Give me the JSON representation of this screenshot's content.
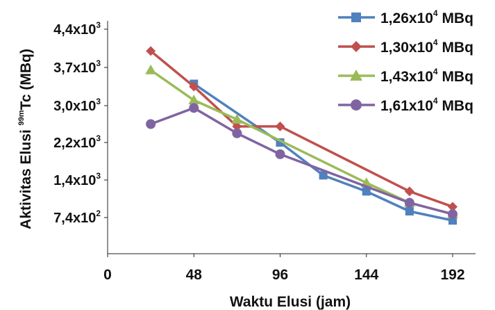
{
  "chart_data": {
    "type": "line",
    "xlabel": "Waktu Elusi (jam)",
    "ylabel": {
      "before": "Aktivitas Elusi ",
      "sup": "99m",
      "after": "Tc (MBq)"
    },
    "x_ticks": [
      "0",
      "48",
      "96",
      "144",
      "192"
    ],
    "x_tick_values": [
      0,
      48,
      96,
      144,
      192
    ],
    "xlim": [
      0,
      192
    ],
    "y_ticks": [
      {
        "value": 740,
        "base": "7,4x10",
        "exp": "2"
      },
      {
        "value": 1400,
        "base": "1,4x10",
        "exp": "3"
      },
      {
        "value": 2200,
        "base": "2,2x10",
        "exp": "3"
      },
      {
        "value": 3000,
        "base": "3,0x10",
        "exp": "3"
      },
      {
        "value": 3700,
        "base": "3,7x10",
        "exp": "3"
      },
      {
        "value": 4400,
        "base": "4,4x10",
        "exp": "3"
      }
    ],
    "y_axis_bottom_value": 0,
    "grid": false,
    "legend_position": "top-right",
    "series": [
      {
        "name": {
          "base": "1,26x10",
          "exp": "4",
          "unit": " MBq"
        },
        "color": "#4f81bd",
        "marker": "square",
        "x": [
          48,
          96,
          120,
          144,
          168,
          192
        ],
        "y": [
          3400,
          2200,
          1500,
          1200,
          850,
          680
        ]
      },
      {
        "name": {
          "base": "1,30x10",
          "exp": "4",
          "unit": " MBq"
        },
        "color": "#c0504d",
        "marker": "diamond",
        "x": [
          24,
          48,
          72,
          96,
          168,
          192
        ],
        "y": [
          4000,
          3350,
          2550,
          2550,
          1200,
          930
        ]
      },
      {
        "name": {
          "base": "1,43x10",
          "exp": "4",
          "unit": " MBq"
        },
        "color": "#9bbb59",
        "marker": "triangle",
        "x": [
          24,
          48,
          72,
          144,
          168,
          192
        ],
        "y": [
          3650,
          3100,
          2700,
          1350,
          1000,
          800
        ]
      },
      {
        "name": {
          "base": "1,61x10",
          "exp": "4",
          "unit": " MBq"
        },
        "color": "#8064a2",
        "marker": "circle",
        "x": [
          24,
          48,
          72,
          96,
          168,
          192
        ],
        "y": [
          2600,
          2950,
          2400,
          1950,
          1000,
          800
        ]
      }
    ]
  }
}
